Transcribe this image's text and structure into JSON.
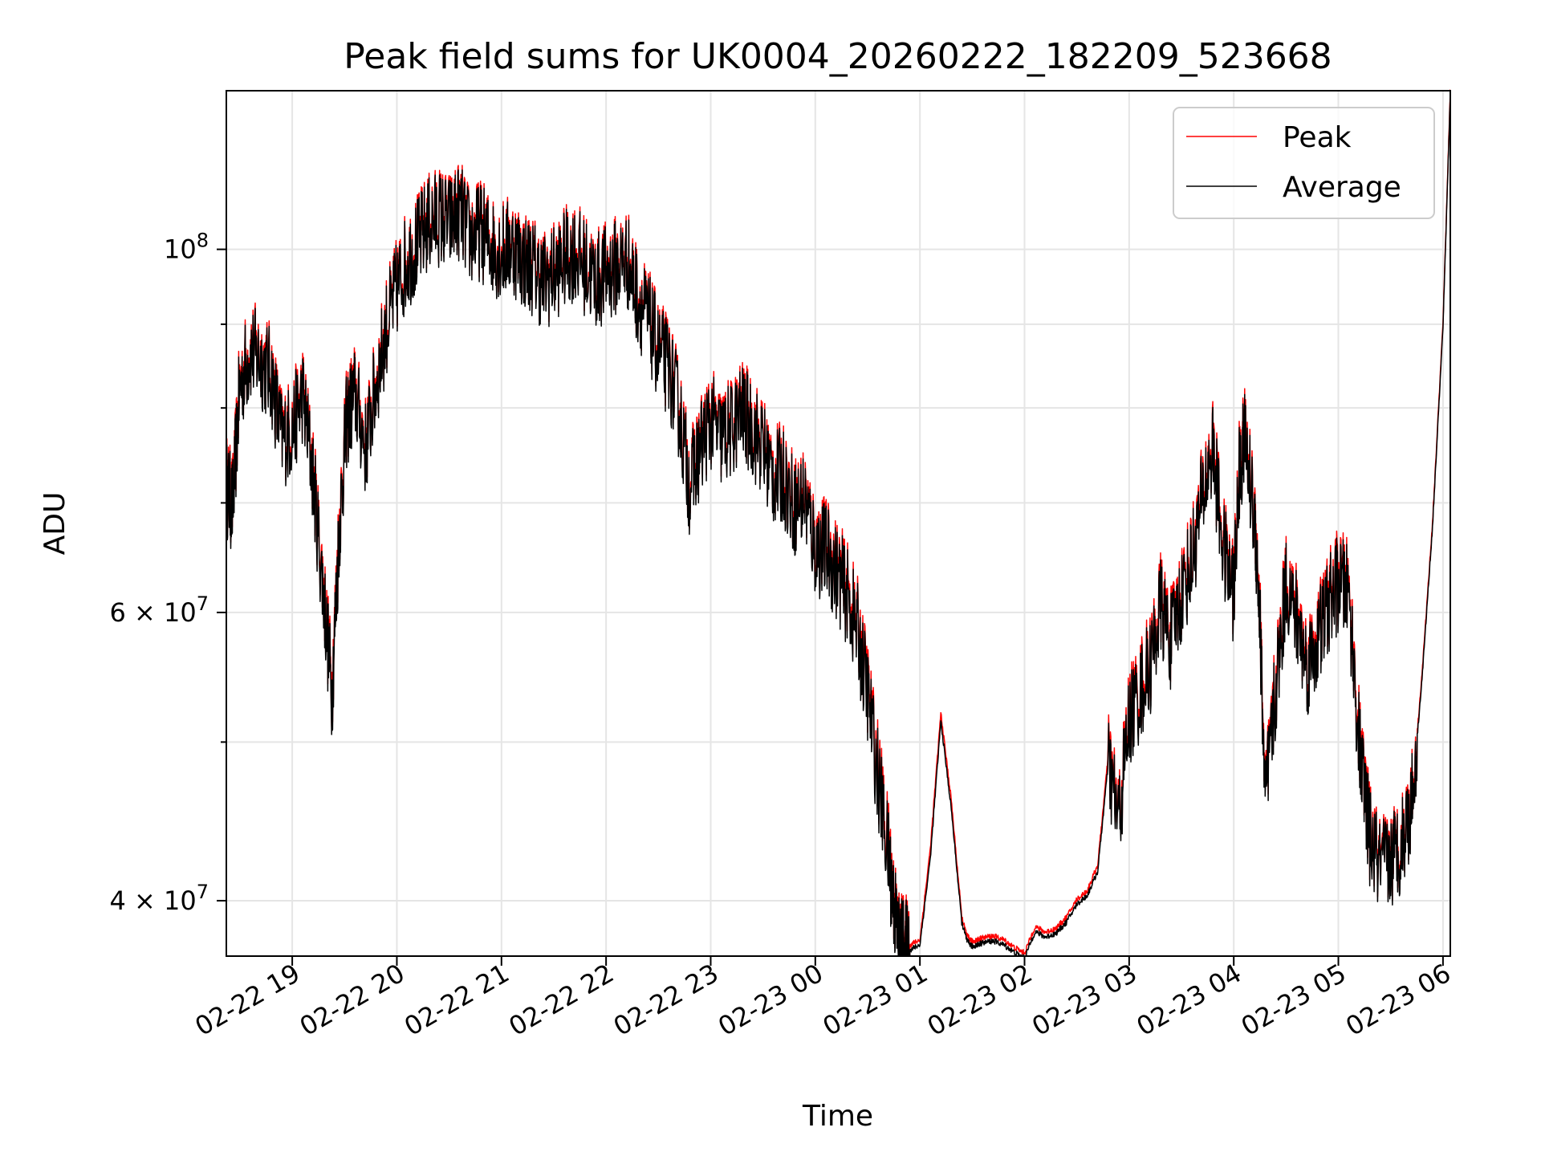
{
  "chart_data": {
    "type": "line",
    "title": "Peak field sums for UK0004_20260222_182209_523668",
    "xlabel": "Time",
    "ylabel": "ADU",
    "x_unit": "hours since 2026-02-22 18:00",
    "xlim": [
      18.37,
      30.07
    ],
    "ylim": [
      37000000,
      125000000
    ],
    "yscale": "log",
    "grid": true,
    "legend_position": "top-right",
    "x_ticks": [
      {
        "value": 19,
        "label": "02-22 19"
      },
      {
        "value": 20,
        "label": "02-22 20"
      },
      {
        "value": 21,
        "label": "02-22 21"
      },
      {
        "value": 22,
        "label": "02-22 22"
      },
      {
        "value": 23,
        "label": "02-22 23"
      },
      {
        "value": 24,
        "label": "02-23 00"
      },
      {
        "value": 25,
        "label": "02-23 01"
      },
      {
        "value": 26,
        "label": "02-23 02"
      },
      {
        "value": 27,
        "label": "02-23 03"
      },
      {
        "value": 28,
        "label": "02-23 04"
      },
      {
        "value": 29,
        "label": "02-23 05"
      },
      {
        "value": 30,
        "label": "02-23 06"
      }
    ],
    "y_major_ticks": [
      {
        "value": 100000000,
        "base": "10",
        "exp": "8"
      },
      {
        "value": 60000000,
        "base": "6 × 10",
        "exp": "7"
      },
      {
        "value": 40000000,
        "base": "4 × 10",
        "exp": "7"
      }
    ],
    "y_minor_ticks": [
      90000000,
      80000000,
      70000000,
      50000000
    ],
    "series": [
      {
        "name": "Peak",
        "color": "#ff0000",
        "x": [
          18.37,
          18.43,
          18.5,
          18.6,
          18.7,
          18.8,
          18.9,
          19.0,
          19.1,
          19.2,
          19.3,
          19.38,
          19.45,
          19.52,
          19.6,
          19.7,
          19.8,
          19.9,
          20.0,
          20.1,
          20.2,
          20.3,
          20.4,
          20.5,
          20.6,
          20.7,
          20.8,
          20.9,
          21.0,
          21.1,
          21.2,
          21.3,
          21.4,
          21.5,
          21.6,
          21.7,
          21.8,
          21.9,
          22.0,
          22.1,
          22.2,
          22.3,
          22.4,
          22.5,
          22.6,
          22.7,
          22.8,
          22.9,
          23.0,
          23.1,
          23.2,
          23.3,
          23.4,
          23.5,
          23.6,
          23.7,
          23.8,
          23.9,
          24.0,
          24.1,
          24.2,
          24.3,
          24.4,
          24.5,
          24.6,
          24.7,
          24.75,
          24.8,
          24.85,
          24.9,
          25.0,
          25.1,
          25.2,
          25.3,
          25.4,
          25.45,
          25.5,
          25.55,
          25.6,
          25.7,
          25.8,
          25.9,
          26.0,
          26.1,
          26.2,
          26.3,
          26.4,
          26.5,
          26.6,
          26.7,
          26.8,
          26.9,
          27.0,
          27.1,
          27.2,
          27.3,
          27.4,
          27.5,
          27.6,
          27.7,
          27.8,
          27.9,
          28.0,
          28.05,
          28.1,
          28.2,
          28.25,
          28.3,
          28.4,
          28.5,
          28.6,
          28.7,
          28.8,
          28.9,
          29.0,
          29.1,
          29.2,
          29.3,
          29.4,
          29.5,
          29.6,
          29.7,
          29.8,
          29.9,
          30.0,
          30.07
        ],
        "y": [
          72000000,
          70000000,
          83000000,
          87000000,
          86000000,
          84000000,
          77000000,
          78000000,
          82000000,
          73000000,
          62000000,
          54000000,
          68000000,
          79000000,
          82000000,
          76000000,
          83000000,
          90000000,
          95000000,
          99000000,
          101000000,
          104000000,
          105000000,
          104000000,
          106000000,
          102000000,
          103000000,
          101000000,
          100000000,
          101000000,
          99000000,
          98000000,
          96000000,
          97000000,
          99000000,
          100000000,
          98000000,
          96000000,
          97000000,
          98000000,
          99000000,
          94000000,
          91000000,
          87000000,
          85000000,
          80000000,
          72000000,
          76000000,
          79000000,
          77000000,
          78000000,
          80000000,
          78000000,
          76000000,
          73000000,
          73000000,
          70000000,
          71000000,
          66000000,
          66000000,
          64000000,
          62000000,
          59000000,
          54000000,
          48000000,
          43000000,
          40000000,
          38000000,
          37600000,
          37500000,
          37800000,
          43000000,
          52000000,
          46000000,
          39000000,
          38000000,
          37700000,
          37800000,
          37900000,
          38000000,
          37800000,
          37400000,
          37100000,
          38500000,
          38200000,
          38400000,
          39000000,
          40000000,
          40500000,
          42000000,
          49000000,
          45000000,
          52000000,
          54000000,
          56000000,
          61000000,
          58000000,
          62000000,
          65000000,
          71000000,
          76000000,
          66000000,
          62000000,
          73000000,
          77000000,
          69000000,
          60000000,
          46000000,
          54000000,
          63000000,
          60000000,
          56000000,
          58000000,
          61000000,
          63000000,
          62000000,
          50000000,
          44000000,
          42000000,
          42500000,
          43500000,
          46000000,
          55000000,
          68000000,
          90000000,
          125000000
        ]
      },
      {
        "name": "Average",
        "color": "#000000",
        "x": [
          18.37,
          18.43,
          18.5,
          18.6,
          18.7,
          18.8,
          18.9,
          19.0,
          19.1,
          19.2,
          19.3,
          19.38,
          19.45,
          19.52,
          19.6,
          19.7,
          19.8,
          19.9,
          20.0,
          20.1,
          20.2,
          20.3,
          20.4,
          20.5,
          20.6,
          20.7,
          20.8,
          20.9,
          21.0,
          21.1,
          21.2,
          21.3,
          21.4,
          21.5,
          21.6,
          21.7,
          21.8,
          21.9,
          22.0,
          22.1,
          22.2,
          22.3,
          22.4,
          22.5,
          22.6,
          22.7,
          22.8,
          22.9,
          23.0,
          23.1,
          23.2,
          23.3,
          23.4,
          23.5,
          23.6,
          23.7,
          23.8,
          23.9,
          24.0,
          24.1,
          24.2,
          24.3,
          24.4,
          24.5,
          24.6,
          24.7,
          24.75,
          24.8,
          24.85,
          24.9,
          25.0,
          25.1,
          25.2,
          25.3,
          25.4,
          25.45,
          25.5,
          25.55,
          25.6,
          25.7,
          25.8,
          25.9,
          26.0,
          26.1,
          26.2,
          26.3,
          26.4,
          26.5,
          26.6,
          26.7,
          26.8,
          26.9,
          27.0,
          27.1,
          27.2,
          27.3,
          27.4,
          27.5,
          27.6,
          27.7,
          27.8,
          27.9,
          28.0,
          28.05,
          28.1,
          28.2,
          28.25,
          28.3,
          28.4,
          28.5,
          28.6,
          28.7,
          28.8,
          28.9,
          29.0,
          29.1,
          29.2,
          29.3,
          29.4,
          29.5,
          29.6,
          29.7,
          29.8,
          29.9,
          30.0,
          30.07
        ],
        "y": [
          71500000,
          69500000,
          82500000,
          86500000,
          85500000,
          83500000,
          76500000,
          77500000,
          81500000,
          72500000,
          61500000,
          53500000,
          67500000,
          78500000,
          81500000,
          75500000,
          82500000,
          89500000,
          94500000,
          98500000,
          100500000,
          103500000,
          104500000,
          103500000,
          105500000,
          101500000,
          102500000,
          100500000,
          99500000,
          100500000,
          98500000,
          97500000,
          95500000,
          96500000,
          98500000,
          99500000,
          97500000,
          95500000,
          96500000,
          97500000,
          98500000,
          93500000,
          90500000,
          86500000,
          84500000,
          79500000,
          71500000,
          75500000,
          78500000,
          76500000,
          77500000,
          79500000,
          77500000,
          75500000,
          72500000,
          72500000,
          69500000,
          70500000,
          65500000,
          65500000,
          63500000,
          61500000,
          58500000,
          53500000,
          47500000,
          42500000,
          39800000,
          37800000,
          37400000,
          37300000,
          37600000,
          42500000,
          51500000,
          45500000,
          38800000,
          37800000,
          37500000,
          37600000,
          37700000,
          37800000,
          37600000,
          37200000,
          36900000,
          38300000,
          38000000,
          38200000,
          38800000,
          39800000,
          40300000,
          41700000,
          48500000,
          44700000,
          51500000,
          53500000,
          55500000,
          60500000,
          57500000,
          61500000,
          64500000,
          70500000,
          75500000,
          65500000,
          61500000,
          72500000,
          76500000,
          68500000,
          59500000,
          45700000,
          53500000,
          62500000,
          59500000,
          55500000,
          57500000,
          60500000,
          62500000,
          61500000,
          49600000,
          43700000,
          41800000,
          42300000,
          43300000,
          45800000,
          54700000,
          67700000,
          89600000,
          124500000
        ]
      }
    ]
  }
}
